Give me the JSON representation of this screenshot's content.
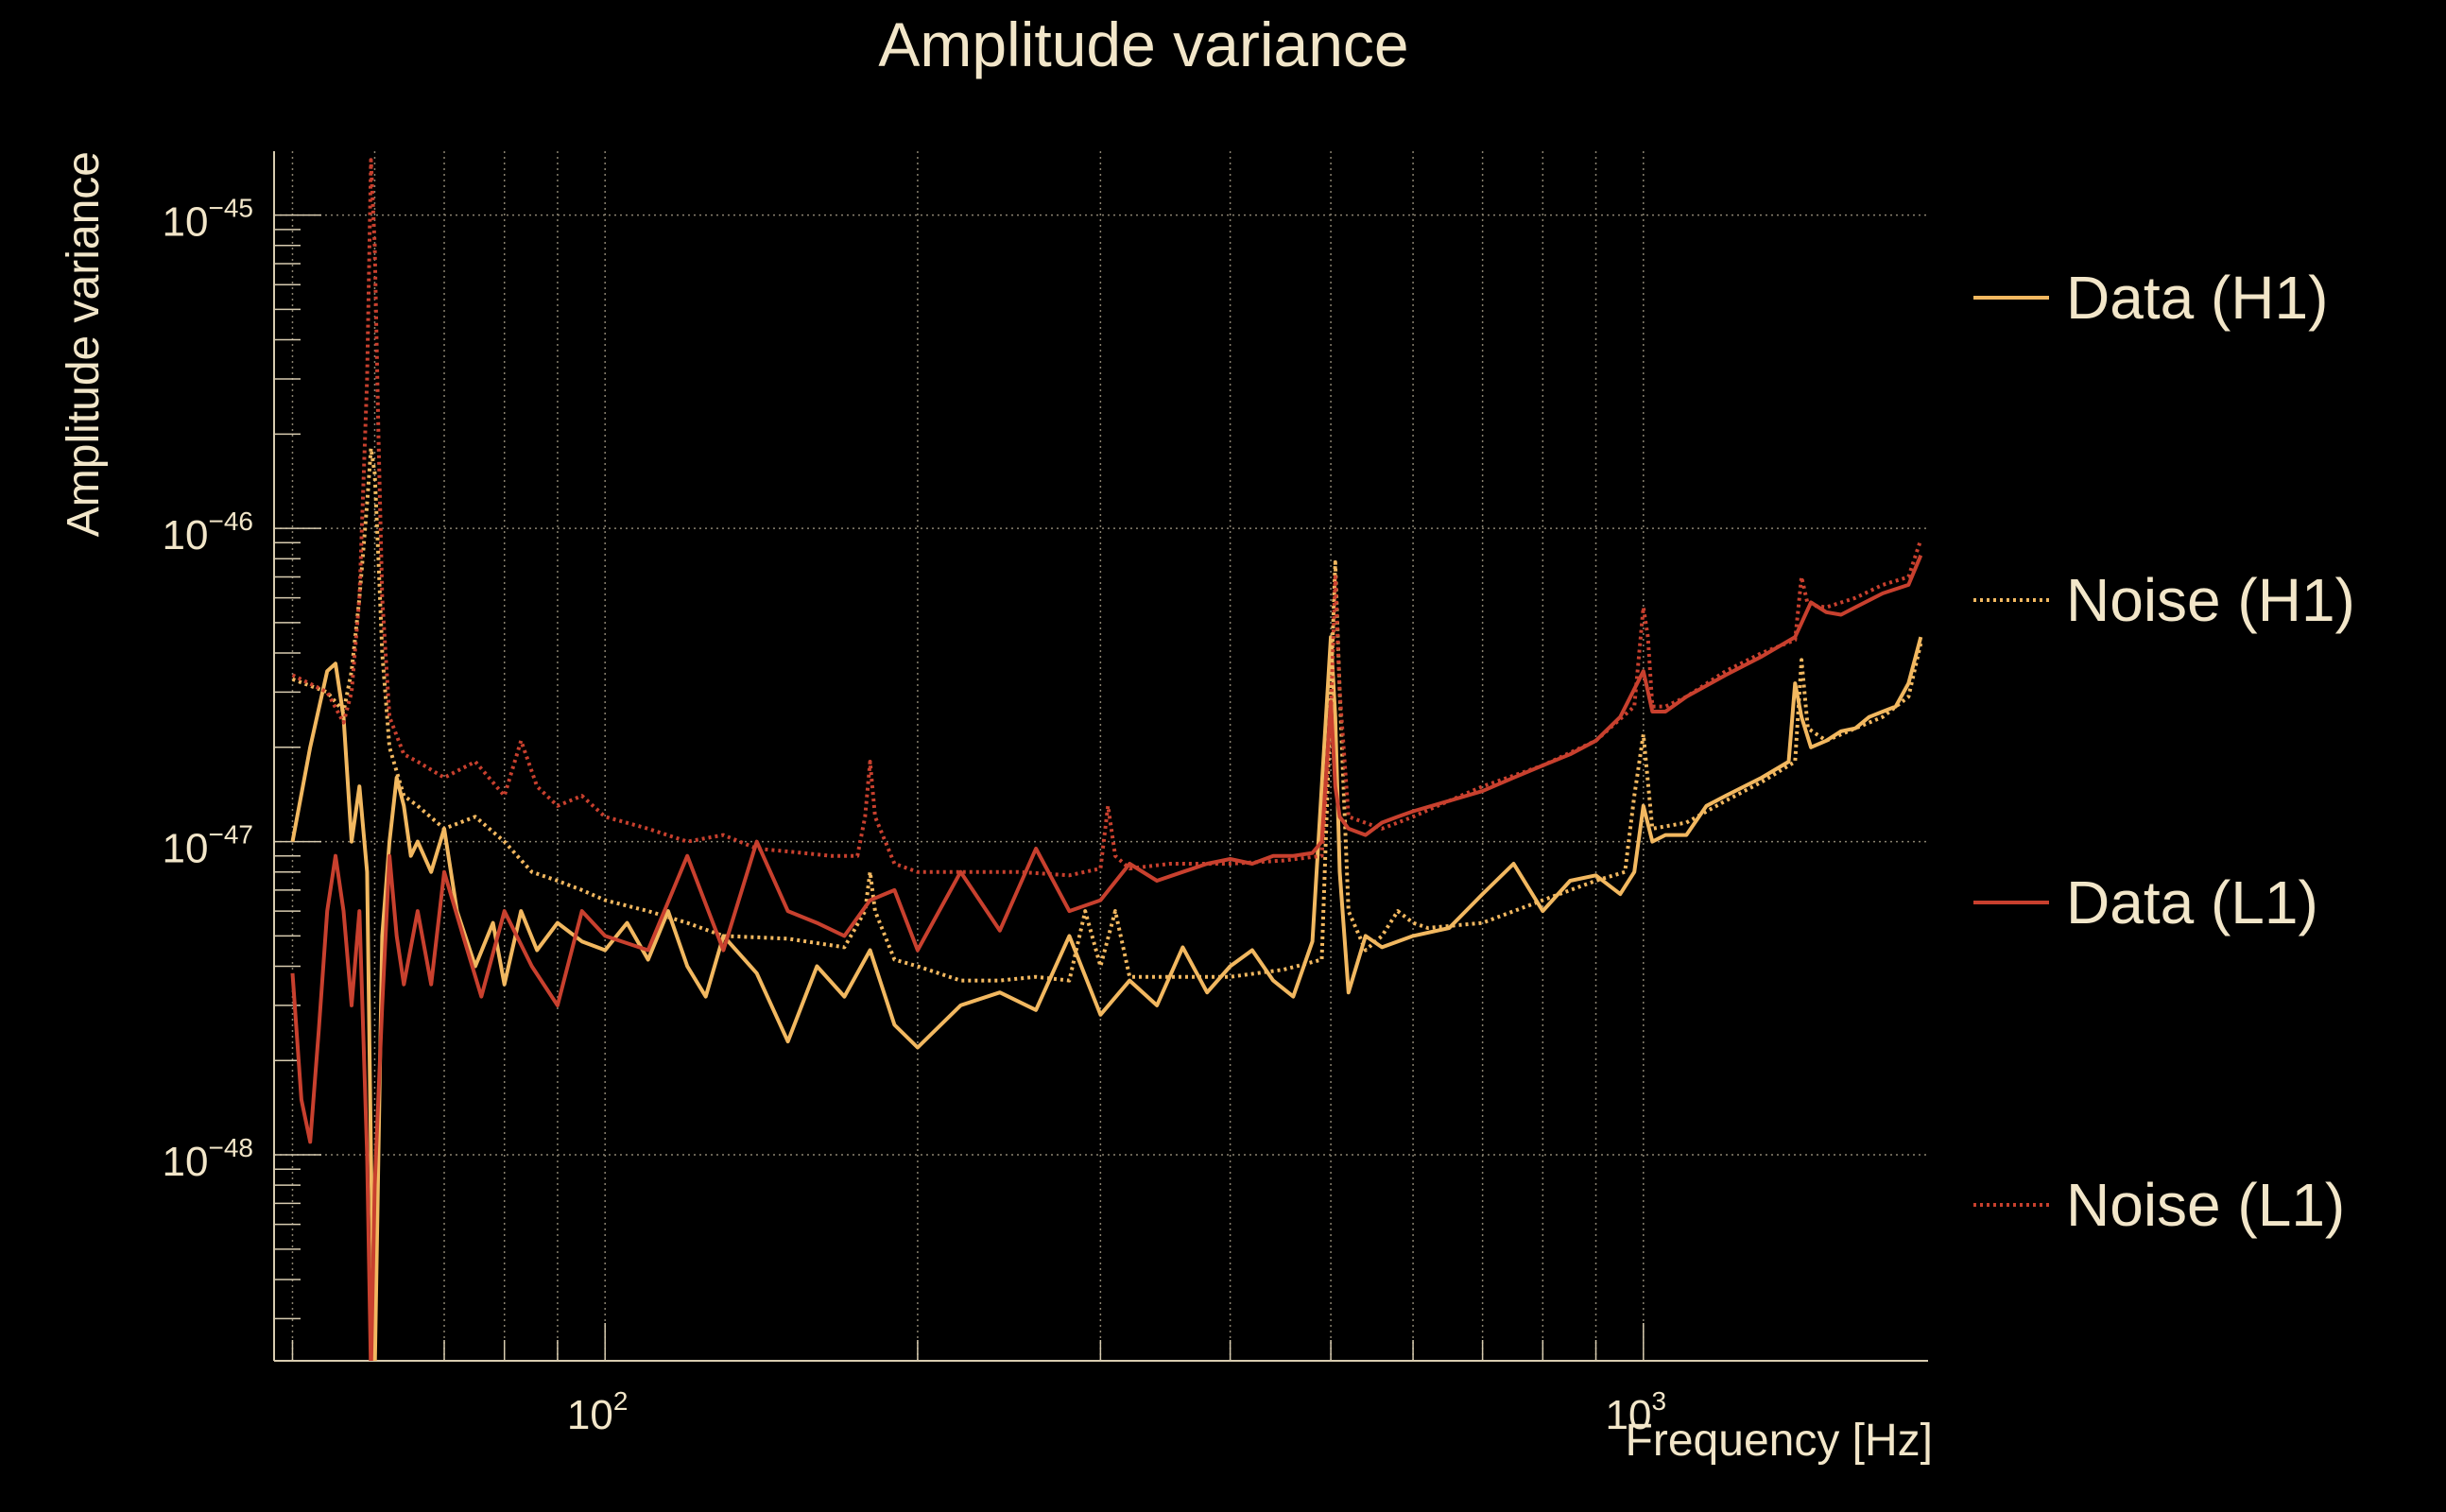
{
  "chart_data": {
    "type": "line",
    "title": "Amplitude variance",
    "xlabel": "Frequency [Hz]",
    "ylabel": "Amplitude variance",
    "xscale": "log",
    "yscale": "log",
    "xlim": [
      48,
      1880
    ],
    "ylim": [
      2.2e-49,
      1.6e-45
    ],
    "grid": true,
    "legend_position": "right",
    "x_ticks": [
      {
        "value": 100,
        "base": "10",
        "exp": "2"
      },
      {
        "value": 1000,
        "base": "10",
        "exp": "3"
      }
    ],
    "y_ticks": [
      {
        "value": 1e-45,
        "base": "10",
        "exp": "−45"
      },
      {
        "value": 1e-46,
        "base": "10",
        "exp": "−46"
      },
      {
        "value": 1e-47,
        "base": "10",
        "exp": "−47"
      },
      {
        "value": 1e-48,
        "base": "10",
        "exp": "−48"
      }
    ],
    "series": [
      {
        "name": "Data (H1)",
        "color": "#f2b860",
        "dash": "solid",
        "x": [
          50,
          52,
          54,
          55,
          56,
          57,
          58,
          59,
          59.5,
          60,
          60.5,
          61,
          62,
          63,
          64,
          65,
          66,
          68,
          70,
          72,
          75,
          78,
          80,
          83,
          86,
          90,
          95,
          100,
          105,
          110,
          115,
          120,
          125,
          130,
          140,
          150,
          160,
          170,
          180,
          190,
          200,
          220,
          240,
          260,
          280,
          300,
          320,
          340,
          360,
          380,
          400,
          420,
          440,
          460,
          480,
          490,
          500,
          505,
          510,
          520,
          540,
          560,
          600,
          650,
          700,
          750,
          800,
          850,
          900,
          950,
          980,
          1000,
          1020,
          1050,
          1100,
          1150,
          1200,
          1300,
          1380,
          1400,
          1420,
          1450,
          1500,
          1550,
          1600,
          1650,
          1700,
          1750,
          1800,
          1850
        ],
        "y": [
          1e-47,
          2e-47,
          3.5e-47,
          3.7e-47,
          2.5e-47,
          1e-47,
          1.5e-47,
          8e-48,
          1e-48,
          2e-49,
          1e-48,
          5e-48,
          1e-47,
          1.6e-47,
          1.3e-47,
          9e-48,
          1e-47,
          8e-48,
          1.1e-47,
          6e-48,
          4e-48,
          5.5e-48,
          3.5e-48,
          6e-48,
          4.5e-48,
          5.5e-48,
          4.8e-48,
          4.5e-48,
          5.5e-48,
          4.2e-48,
          6e-48,
          4e-48,
          3.2e-48,
          5e-48,
          3.8e-48,
          2.3e-48,
          4e-48,
          3.2e-48,
          4.5e-48,
          2.6e-48,
          2.2e-48,
          3e-48,
          3.3e-48,
          2.9e-48,
          5e-48,
          2.8e-48,
          3.6e-48,
          3e-48,
          4.6e-48,
          3.3e-48,
          4e-48,
          4.5e-48,
          3.6e-48,
          3.2e-48,
          4.8e-48,
          1.5e-47,
          4.5e-47,
          2.5e-47,
          8e-48,
          3.3e-48,
          5e-48,
          4.6e-48,
          5e-48,
          5.3e-48,
          6.8e-48,
          8.5e-48,
          6e-48,
          7.5e-48,
          7.8e-48,
          6.8e-48,
          8e-48,
          1.3e-47,
          1e-47,
          1.05e-47,
          1.05e-47,
          1.3e-47,
          1.4e-47,
          1.6e-47,
          1.8e-47,
          3.2e-47,
          2.5e-47,
          2e-47,
          2.1e-47,
          2.25e-47,
          2.3e-47,
          2.5e-47,
          2.6e-47,
          2.7e-47,
          3.2e-47,
          4.5e-47
        ]
      },
      {
        "name": "Noise (H1)",
        "color": "#f2b860",
        "dash": "dotted",
        "x": [
          50,
          54,
          56,
          57,
          58,
          59,
          59.5,
          60,
          60.5,
          61,
          62,
          64,
          66,
          70,
          75,
          80,
          85,
          90,
          95,
          100,
          110,
          120,
          130,
          150,
          170,
          178,
          180,
          182,
          190,
          200,
          220,
          240,
          260,
          280,
          290,
          300,
          310,
          320,
          350,
          400,
          450,
          490,
          500,
          505,
          510,
          520,
          540,
          560,
          580,
          600,
          620,
          700,
          800,
          900,
          960,
          980,
          1000,
          1020,
          1100,
          1200,
          1300,
          1400,
          1420,
          1440,
          1500,
          1600,
          1700,
          1800,
          1850
        ],
        "y": [
          3.3e-47,
          3e-47,
          2.6e-47,
          3.5e-47,
          6e-47,
          1.2e-46,
          1.8e-46,
          1.5e-46,
          8e-47,
          4e-47,
          2e-47,
          1.4e-47,
          1.3e-47,
          1.1e-47,
          1.2e-47,
          1e-47,
          8e-48,
          7.5e-48,
          7e-48,
          6.5e-48,
          6e-48,
          5.5e-48,
          5e-48,
          4.9e-48,
          4.6e-48,
          6e-48,
          8e-48,
          6e-48,
          4.2e-48,
          4e-48,
          3.6e-48,
          3.6e-48,
          3.7e-48,
          3.6e-48,
          6e-48,
          4e-48,
          6e-48,
          3.7e-48,
          3.7e-48,
          3.7e-48,
          3.9e-48,
          4.2e-48,
          3e-47,
          7.8e-47,
          3e-47,
          6e-48,
          4.5e-48,
          5e-48,
          6e-48,
          5.5e-48,
          5.3e-48,
          5.5e-48,
          6.5e-48,
          7.5e-48,
          8e-48,
          1.4e-47,
          2.2e-47,
          1.1e-47,
          1.15e-47,
          1.35e-47,
          1.55e-47,
          1.8e-47,
          3.8e-47,
          2.3e-47,
          2.1e-47,
          2.3e-47,
          2.5e-47,
          2.9e-47,
          4.3e-47
        ]
      },
      {
        "name": "Data (L1)",
        "color": "#c8402e",
        "dash": "solid",
        "x": [
          50,
          51,
          52,
          53,
          54,
          55,
          56,
          57,
          58,
          59,
          59.5,
          60,
          61,
          62,
          63,
          64,
          66,
          68,
          70,
          73,
          76,
          80,
          85,
          90,
          95,
          100,
          110,
          120,
          130,
          140,
          150,
          160,
          170,
          180,
          190,
          200,
          220,
          240,
          260,
          280,
          300,
          320,
          340,
          360,
          380,
          400,
          420,
          440,
          460,
          480,
          490,
          500,
          505,
          510,
          520,
          540,
          560,
          580,
          600,
          650,
          700,
          750,
          800,
          850,
          900,
          950,
          1000,
          1020,
          1050,
          1100,
          1200,
          1300,
          1400,
          1450,
          1500,
          1550,
          1600,
          1700,
          1800,
          1850
        ],
        "y": [
          3.8e-48,
          1.5e-48,
          1.1e-48,
          2.5e-48,
          6e-48,
          9e-48,
          6e-48,
          3e-48,
          6e-48,
          1e-48,
          2e-49,
          8e-49,
          3e-48,
          9e-48,
          5e-48,
          3.5e-48,
          6e-48,
          3.5e-48,
          8e-48,
          5e-48,
          3.2e-48,
          6e-48,
          4e-48,
          3e-48,
          6e-48,
          5e-48,
          4.5e-48,
          9e-48,
          4.5e-48,
          1e-47,
          6e-48,
          5.5e-48,
          5e-48,
          6.5e-48,
          7e-48,
          4.5e-48,
          8e-48,
          5.2e-48,
          9.5e-48,
          6e-48,
          6.5e-48,
          8.5e-48,
          7.5e-48,
          8e-48,
          8.5e-48,
          8.8e-48,
          8.5e-48,
          9e-48,
          9e-48,
          9.2e-48,
          1e-47,
          2.8e-47,
          1.5e-47,
          1.2e-47,
          1.1e-47,
          1.05e-47,
          1.15e-47,
          1.2e-47,
          1.25e-47,
          1.35e-47,
          1.45e-47,
          1.6e-47,
          1.75e-47,
          1.9e-47,
          2.1e-47,
          2.5e-47,
          3.5e-47,
          2.6e-47,
          2.6e-47,
          2.9e-47,
          3.4e-47,
          3.9e-47,
          4.5e-47,
          5.8e-47,
          5.4e-47,
          5.3e-47,
          5.6e-47,
          6.2e-47,
          6.6e-47,
          8.2e-47
        ]
      },
      {
        "name": "Noise (L1)",
        "color": "#c8402e",
        "dash": "dotted",
        "x": [
          50,
          54,
          56,
          57,
          58,
          59,
          59.5,
          60,
          60.5,
          61,
          62,
          64,
          66,
          70,
          75,
          80,
          83,
          86,
          90,
          95,
          100,
          110,
          120,
          130,
          140,
          150,
          165,
          175,
          178,
          180,
          182,
          190,
          200,
          220,
          250,
          280,
          300,
          305,
          310,
          320,
          350,
          400,
          450,
          490,
          500,
          505,
          510,
          520,
          560,
          600,
          650,
          700,
          800,
          900,
          980,
          1000,
          1010,
          1020,
          1050,
          1100,
          1200,
          1300,
          1400,
          1420,
          1440,
          1500,
          1600,
          1700,
          1800,
          1850
        ],
        "y": [
          3.4e-47,
          3e-47,
          2.4e-47,
          3e-47,
          6e-47,
          3e-46,
          1.5e-45,
          8e-46,
          2e-46,
          6e-47,
          2.5e-47,
          1.9e-47,
          1.8e-47,
          1.6e-47,
          1.8e-47,
          1.4e-47,
          2.1e-47,
          1.5e-47,
          1.3e-47,
          1.4e-47,
          1.2e-47,
          1.1e-47,
          1e-47,
          1.05e-47,
          9.5e-48,
          9.3e-48,
          9e-48,
          9e-48,
          1.2e-47,
          1.8e-47,
          1.2e-47,
          8.5e-48,
          8e-48,
          8e-48,
          8e-48,
          7.8e-48,
          8.2e-48,
          1.3e-47,
          9e-48,
          8.2e-48,
          8.5e-48,
          8.5e-48,
          8.7e-48,
          9e-48,
          2.5e-47,
          7e-47,
          3e-47,
          1.2e-47,
          1.1e-47,
          1.2e-47,
          1.35e-47,
          1.5e-47,
          1.75e-47,
          2.1e-47,
          2.7e-47,
          5.6e-47,
          4.5e-47,
          2.7e-47,
          2.7e-47,
          2.9e-47,
          3.5e-47,
          4e-47,
          4.4e-47,
          7e-47,
          5.7e-47,
          5.6e-47,
          6e-47,
          6.6e-47,
          7e-47,
          9.2e-47
        ]
      }
    ]
  }
}
